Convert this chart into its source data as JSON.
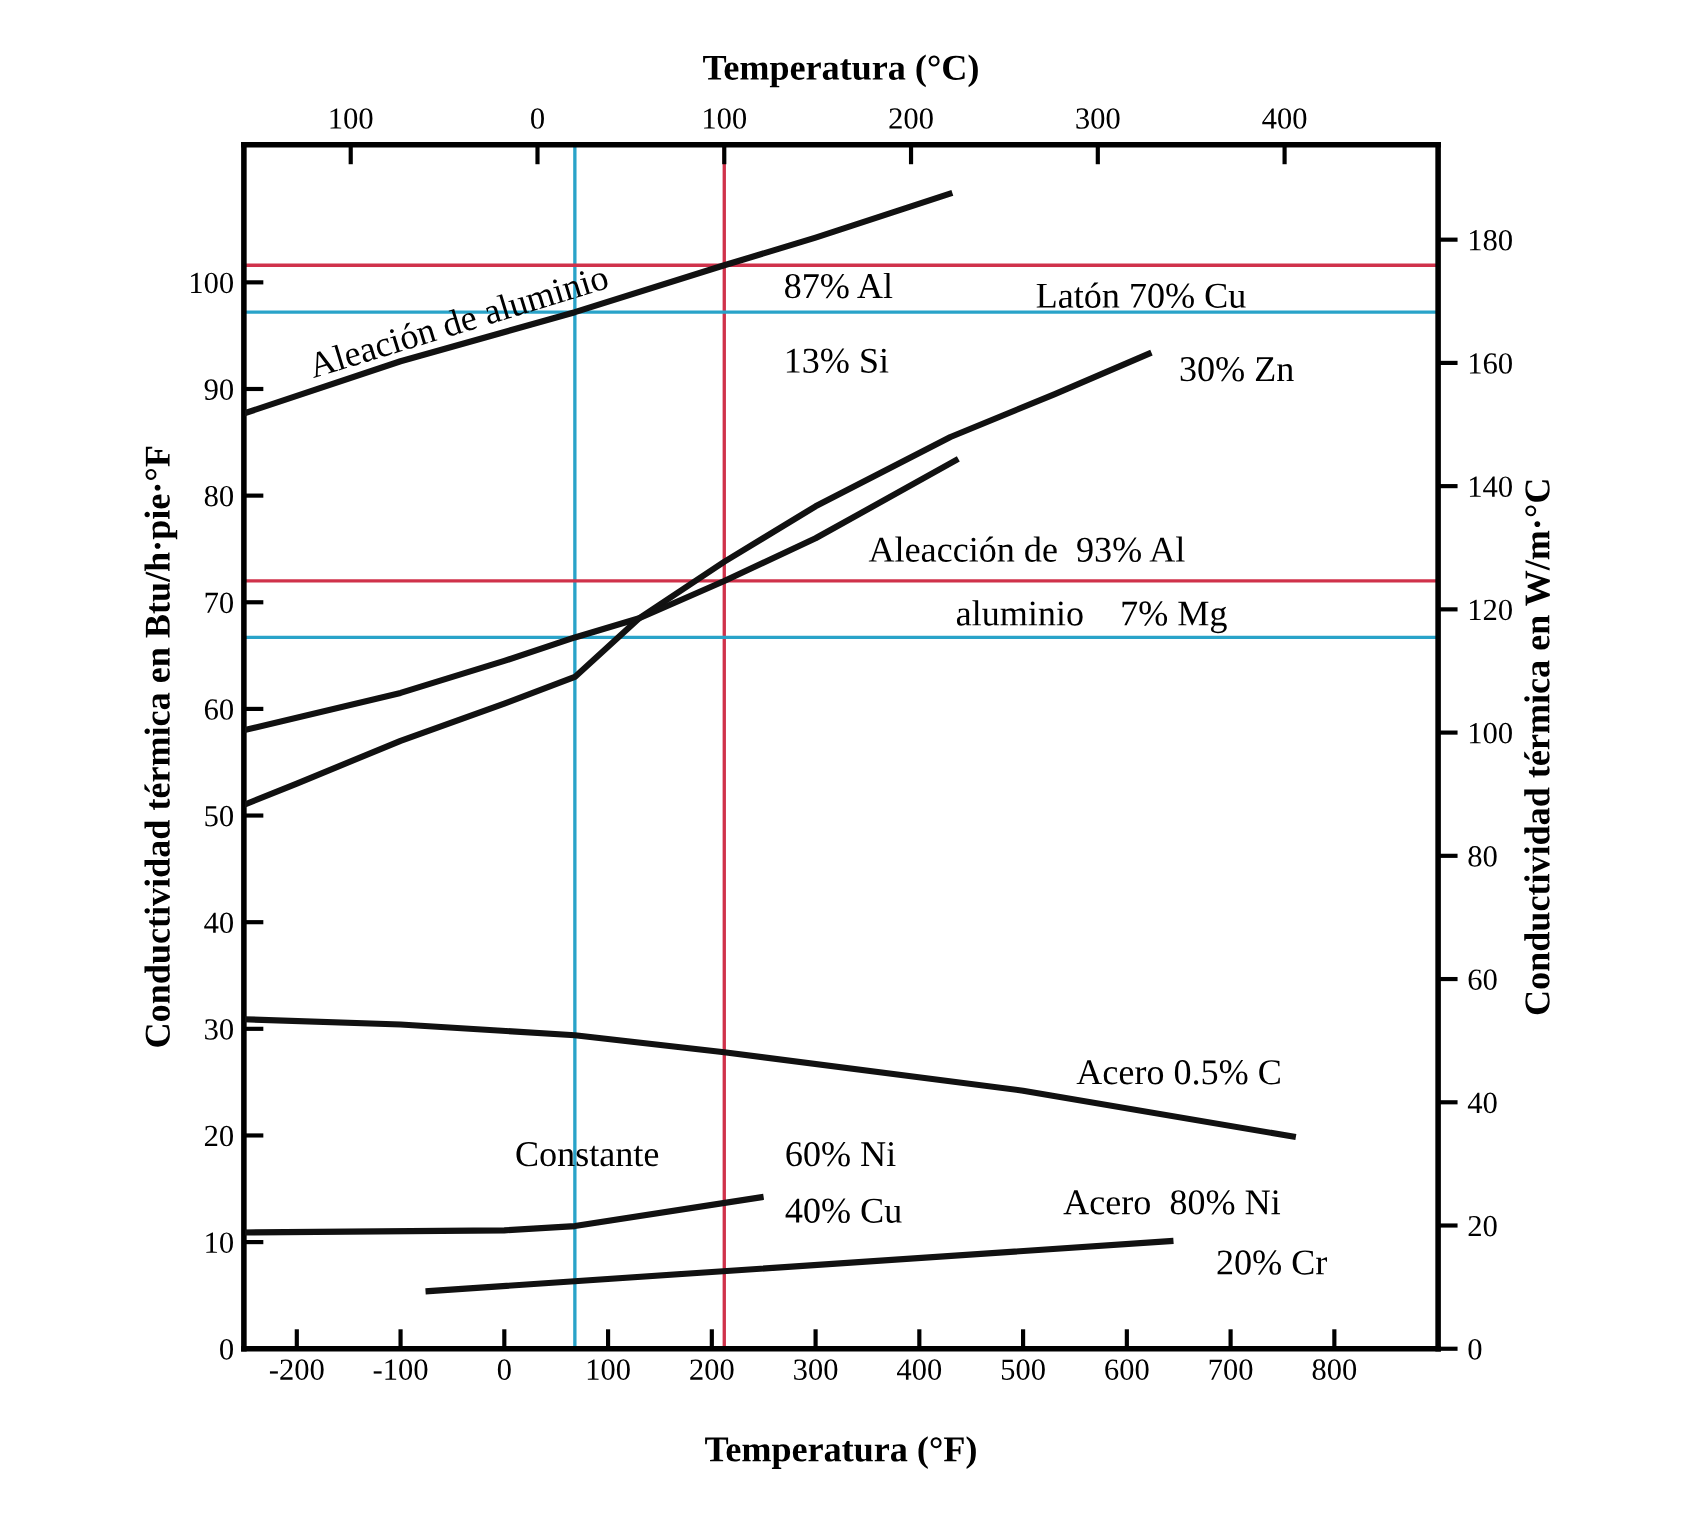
{
  "chart_data": {
    "type": "line",
    "xlabel": "Temperatura (°F)",
    "x2label": "Temperatura (°C)",
    "ylabel": "Conductividad térmica en Btu/h·pie·°F",
    "y2label": "Conductividad térmica en W/m·°C",
    "xlim": [
      -251,
      900
    ],
    "xticks": [
      -200,
      -100,
      0,
      100,
      200,
      300,
      400,
      500,
      600,
      700,
      800
    ],
    "x2lim": [
      -157.2,
      482.2
    ],
    "x2ticks": [
      {
        "value": -100,
        "label": "100"
      },
      0,
      100,
      200,
      300,
      400
    ],
    "ylim": [
      0,
      112.9
    ],
    "yticks": [
      0,
      10,
      20,
      30,
      40,
      50,
      60,
      70,
      80,
      90,
      100
    ],
    "y2lim": [
      0,
      195.4
    ],
    "y2ticks": [
      0,
      20,
      40,
      60,
      80,
      100,
      120,
      140,
      160,
      180
    ],
    "grid": false,
    "legend": false,
    "marker": "none",
    "line_style": "solid",
    "series": [
      {
        "color": "#111111",
        "x": [
          -251,
          -100,
          68,
          212,
          300,
          429
        ],
        "values": [
          87.7,
          92.6,
          97.2,
          101.6,
          104.2,
          108.3
        ]
      },
      {
        "color": "#111111",
        "x": [
          -251,
          -200,
          -100,
          0,
          68,
          130,
          212,
          300,
          430,
          530,
          621
        ],
        "values": [
          51,
          53,
          57,
          60.5,
          63,
          68.5,
          73.8,
          79,
          85.5,
          89.5,
          93.3
        ]
      },
      {
        "color": "#111111",
        "x": [
          -251,
          -100,
          0,
          68,
          130,
          212,
          300,
          435
        ],
        "values": [
          58,
          61.5,
          64.5,
          66.7,
          68.5,
          72.0,
          76,
          83.3
        ]
      },
      {
        "color": "#111111",
        "x": [
          -251,
          -100,
          68,
          212,
          500,
          760
        ],
        "values": [
          30.9,
          30.4,
          29.4,
          27.8,
          24.2,
          19.9
        ]
      },
      {
        "color": "#111111",
        "x": [
          -251,
          0,
          68,
          247
        ],
        "values": [
          10.9,
          11.1,
          11.5,
          14.2
        ]
      },
      {
        "color": "#111111",
        "x": [
          -73,
          200,
          642
        ],
        "values": [
          5.4,
          7.2,
          10.1
        ]
      }
    ],
    "ref_lines": [
      {
        "axis": "x",
        "value": 68,
        "color": "#29a3c9"
      },
      {
        "axis": "x",
        "value": 212,
        "color": "#d0324b"
      },
      {
        "axis": "y",
        "value": 101.6,
        "color": "#d0324b"
      },
      {
        "axis": "y",
        "value": 97.2,
        "color": "#29a3c9"
      },
      {
        "axis": "y",
        "value": 72.0,
        "color": "#d0324b"
      },
      {
        "axis": "y",
        "value": 66.7,
        "color": "#29a3c9"
      }
    ],
    "annotations": [
      "Aleación de aluminio",
      "87% Al",
      "13% Si",
      "Latón 70% Cu",
      "30% Zn",
      "Aleacción de  93% Al",
      "aluminio    7% Mg",
      "Acero 0.5% C",
      "Constante",
      "60% Ni",
      "40% Cu",
      "Acero  80% Ni",
      "20% Cr"
    ]
  }
}
